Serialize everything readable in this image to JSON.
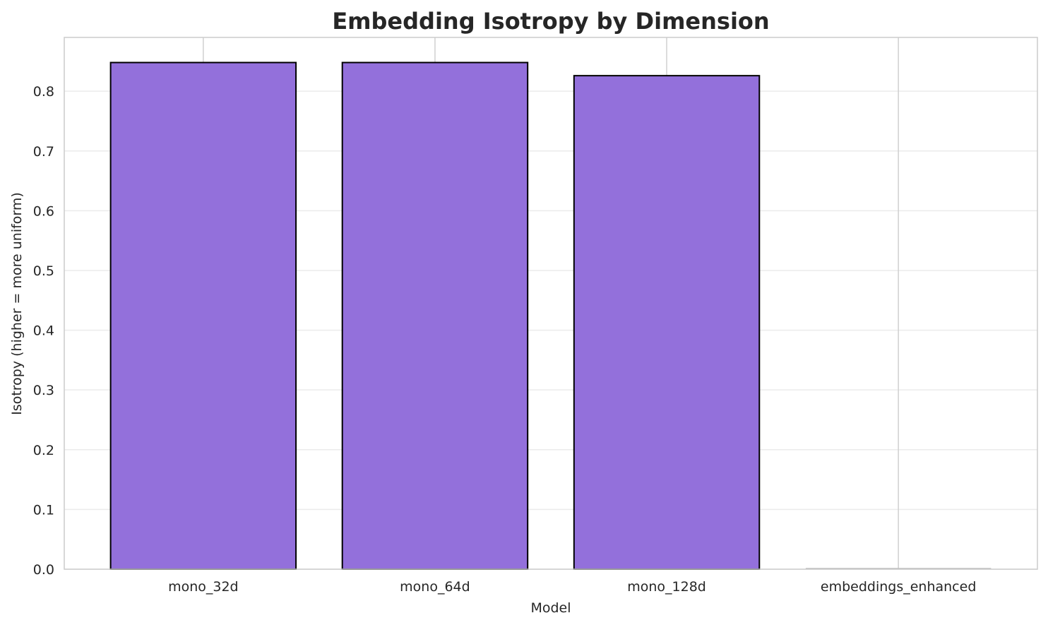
{
  "chart_data": {
    "type": "bar",
    "title": "Embedding Isotropy by Dimension",
    "xlabel": "Model",
    "ylabel": "Isotropy (higher = more uniform)",
    "categories": [
      "mono_32d",
      "mono_64d",
      "mono_128d",
      "embeddings_enhanced"
    ],
    "values": [
      0.848,
      0.848,
      0.826,
      0.0
    ],
    "ylim": [
      0,
      0.89
    ],
    "yticks": [
      "0.0",
      "0.1",
      "0.2",
      "0.3",
      "0.4",
      "0.5",
      "0.6",
      "0.7",
      "0.8"
    ],
    "grid": true,
    "legend": "none",
    "bar_color": "#9370db",
    "edge_color": "#000000"
  }
}
